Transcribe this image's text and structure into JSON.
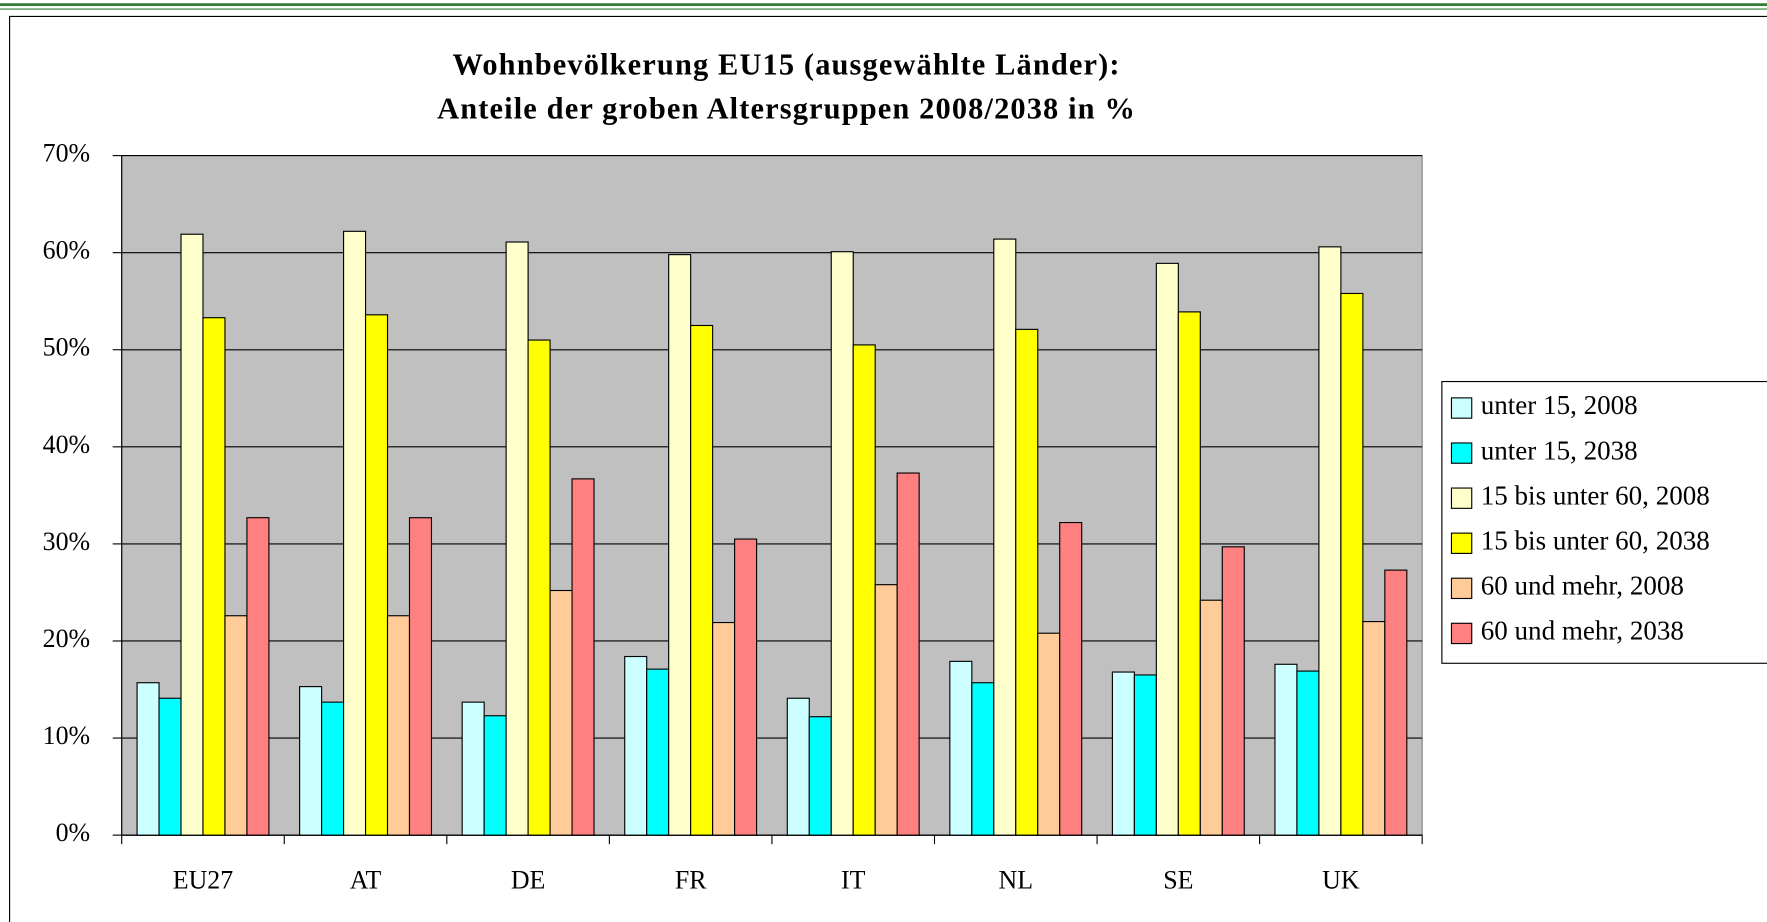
{
  "chart_data": {
    "type": "bar",
    "title": [
      "Wohnbevölkerung EU15 (ausgewählte Länder):",
      "Anteile der groben Altersgruppen 2008/2038 in %"
    ],
    "categories": [
      "EU27",
      "AT",
      "DE",
      "FR",
      "IT",
      "NL",
      "SE",
      "UK"
    ],
    "series": [
      {
        "name": "unter 15, 2008",
        "color": "#ccffff",
        "values": [
          15.7,
          15.3,
          13.7,
          18.4,
          14.1,
          17.9,
          16.8,
          17.6
        ]
      },
      {
        "name": "unter 15, 2038",
        "color": "#00ffff",
        "values": [
          14.1,
          13.7,
          12.3,
          17.1,
          12.2,
          15.7,
          16.5,
          16.9
        ]
      },
      {
        "name": "15 bis unter 60, 2008",
        "color": "#ffffcc",
        "values": [
          61.9,
          62.2,
          61.1,
          59.8,
          60.1,
          61.4,
          58.9,
          60.6
        ]
      },
      {
        "name": "15 bis unter 60, 2038",
        "color": "#ffff00",
        "values": [
          53.3,
          53.6,
          51.0,
          52.5,
          50.5,
          52.1,
          53.9,
          55.8
        ]
      },
      {
        "name": "60 und mehr, 2008",
        "color": "#ffcc99",
        "values": [
          22.6,
          22.6,
          25.2,
          21.9,
          25.8,
          20.8,
          24.2,
          22.0
        ]
      },
      {
        "name": "60 und mehr, 2038",
        "color": "#ff8080",
        "values": [
          32.7,
          32.7,
          36.7,
          30.5,
          37.3,
          32.2,
          29.7,
          27.3
        ]
      }
    ],
    "ylim": [
      0,
      70
    ],
    "yticks": [
      {
        "value": 0,
        "label": "0%"
      },
      {
        "value": 10,
        "label": "10%"
      },
      {
        "value": 20,
        "label": "20%"
      },
      {
        "value": 30,
        "label": "30%"
      },
      {
        "value": 40,
        "label": "40%"
      },
      {
        "value": 50,
        "label": "50%"
      },
      {
        "value": 60,
        "label": "60%"
      },
      {
        "value": 70,
        "label": "70%"
      }
    ],
    "grid": true,
    "plot_background": "#c0c0c0",
    "legend": "right"
  }
}
